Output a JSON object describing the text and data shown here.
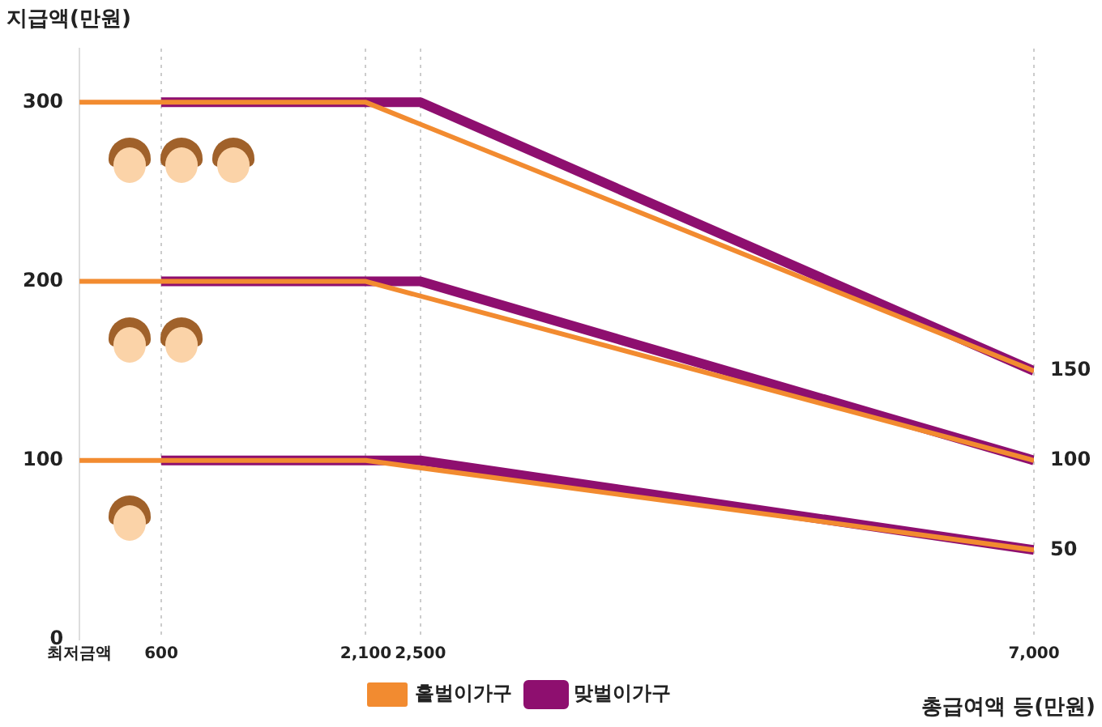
{
  "chart_data": {
    "type": "line",
    "ylabel": "지급액(만원)",
    "xlabel": "총급여액 등(만원)",
    "xlim": [
      0,
      7000
    ],
    "xticks": [
      {
        "value": 0,
        "label": "최저금액"
      },
      {
        "value": 600,
        "label": "600"
      },
      {
        "value": 2100,
        "label": "2,100"
      },
      {
        "value": 2500,
        "label": "2,500"
      },
      {
        "value": 7000,
        "label": "7,000"
      }
    ],
    "ylim": [
      0,
      330
    ],
    "yticks": [
      0,
      100,
      200,
      300
    ],
    "grid": "x",
    "legend": "bottom",
    "marker": "none",
    "line_style": "solid",
    "series": [
      {
        "name": "홑벌이가구",
        "color": "#f28b30",
        "x": [
          0,
          2100,
          7000
        ],
        "values": [
          300,
          300,
          150
        ],
        "value_labels": [
          null,
          null,
          "150"
        ]
      },
      {
        "color": "#f28b30",
        "x": [
          0,
          2100,
          7000
        ],
        "values": [
          200,
          200,
          100
        ],
        "value_labels": [
          null,
          null,
          "100"
        ]
      },
      {
        "color": "#f28b30",
        "x": [
          0,
          2100,
          7000
        ],
        "values": [
          100,
          100,
          50
        ],
        "value_labels": [
          null,
          null,
          "50"
        ]
      },
      {
        "name": "맞벌이가구",
        "color": "#8e0f6f",
        "x": [
          600,
          2500,
          7000
        ],
        "values": [
          300,
          300,
          150
        ]
      },
      {
        "color": "#8e0f6f",
        "x": [
          600,
          2500,
          7000
        ],
        "values": [
          200,
          200,
          100
        ]
      },
      {
        "color": "#8e0f6f",
        "x": [
          600,
          2500,
          7000
        ],
        "values": [
          100,
          100,
          50
        ]
      }
    ]
  }
}
